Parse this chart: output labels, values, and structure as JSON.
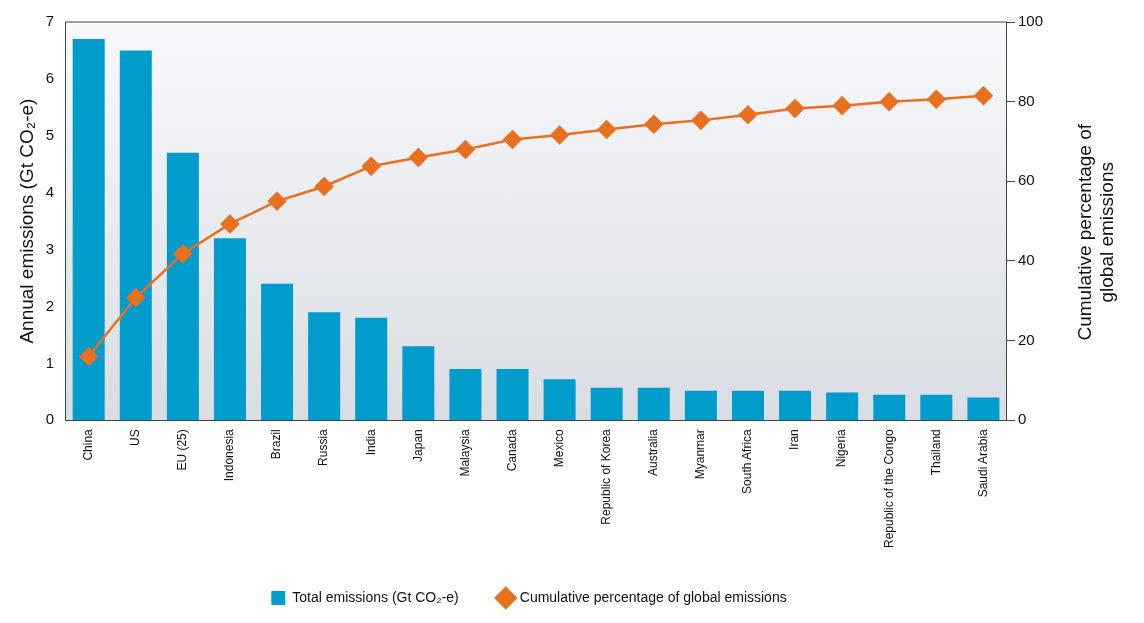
{
  "chart_data": {
    "type": "bar",
    "ylabel": "Annual emissions (Gt CO₂-e)",
    "y2label": "Cumulative percentage of\nglobal emissions",
    "categories": [
      "China",
      "US",
      "EU (25)",
      "Indonesia",
      "Brazil",
      "Russia",
      "India",
      "Japan",
      "Malaysia",
      "Canada",
      "Mexico",
      "Republic of Korea",
      "Australia",
      "Myanmar",
      "South Africa",
      "Iran",
      "Nigeria",
      "Republic of the Congo",
      "Thailand",
      "Saudi Arabia"
    ],
    "series": [
      {
        "name": "Total emissions (Gt CO₂-e)",
        "color": "#009ccc",
        "values": [
          6.7,
          6.5,
          4.7,
          3.2,
          2.4,
          1.9,
          1.8,
          1.3,
          0.9,
          0.9,
          0.72,
          0.57,
          0.57,
          0.52,
          0.52,
          0.52,
          0.49,
          0.45,
          0.45,
          0.4
        ]
      },
      {
        "name": "Cumulative percentage of global emissions",
        "type": "line",
        "axis": "y2",
        "color": "#e8701f",
        "values": [
          16,
          30.8,
          41.8,
          49.3,
          55,
          58.7,
          63.8,
          66,
          68,
          70.5,
          71.6,
          73,
          74.3,
          75.3,
          76.7,
          78.3,
          79,
          80,
          80.6,
          81.5
        ]
      }
    ],
    "ylim": [
      0,
      7
    ],
    "yticks": [
      0,
      1,
      2,
      3,
      4,
      5,
      6,
      7
    ],
    "y2lim": [
      0,
      100
    ],
    "y2ticks": [
      0,
      20,
      40,
      60,
      80,
      100
    ],
    "legend": "bottom",
    "marker": "diamond",
    "grid": false
  }
}
